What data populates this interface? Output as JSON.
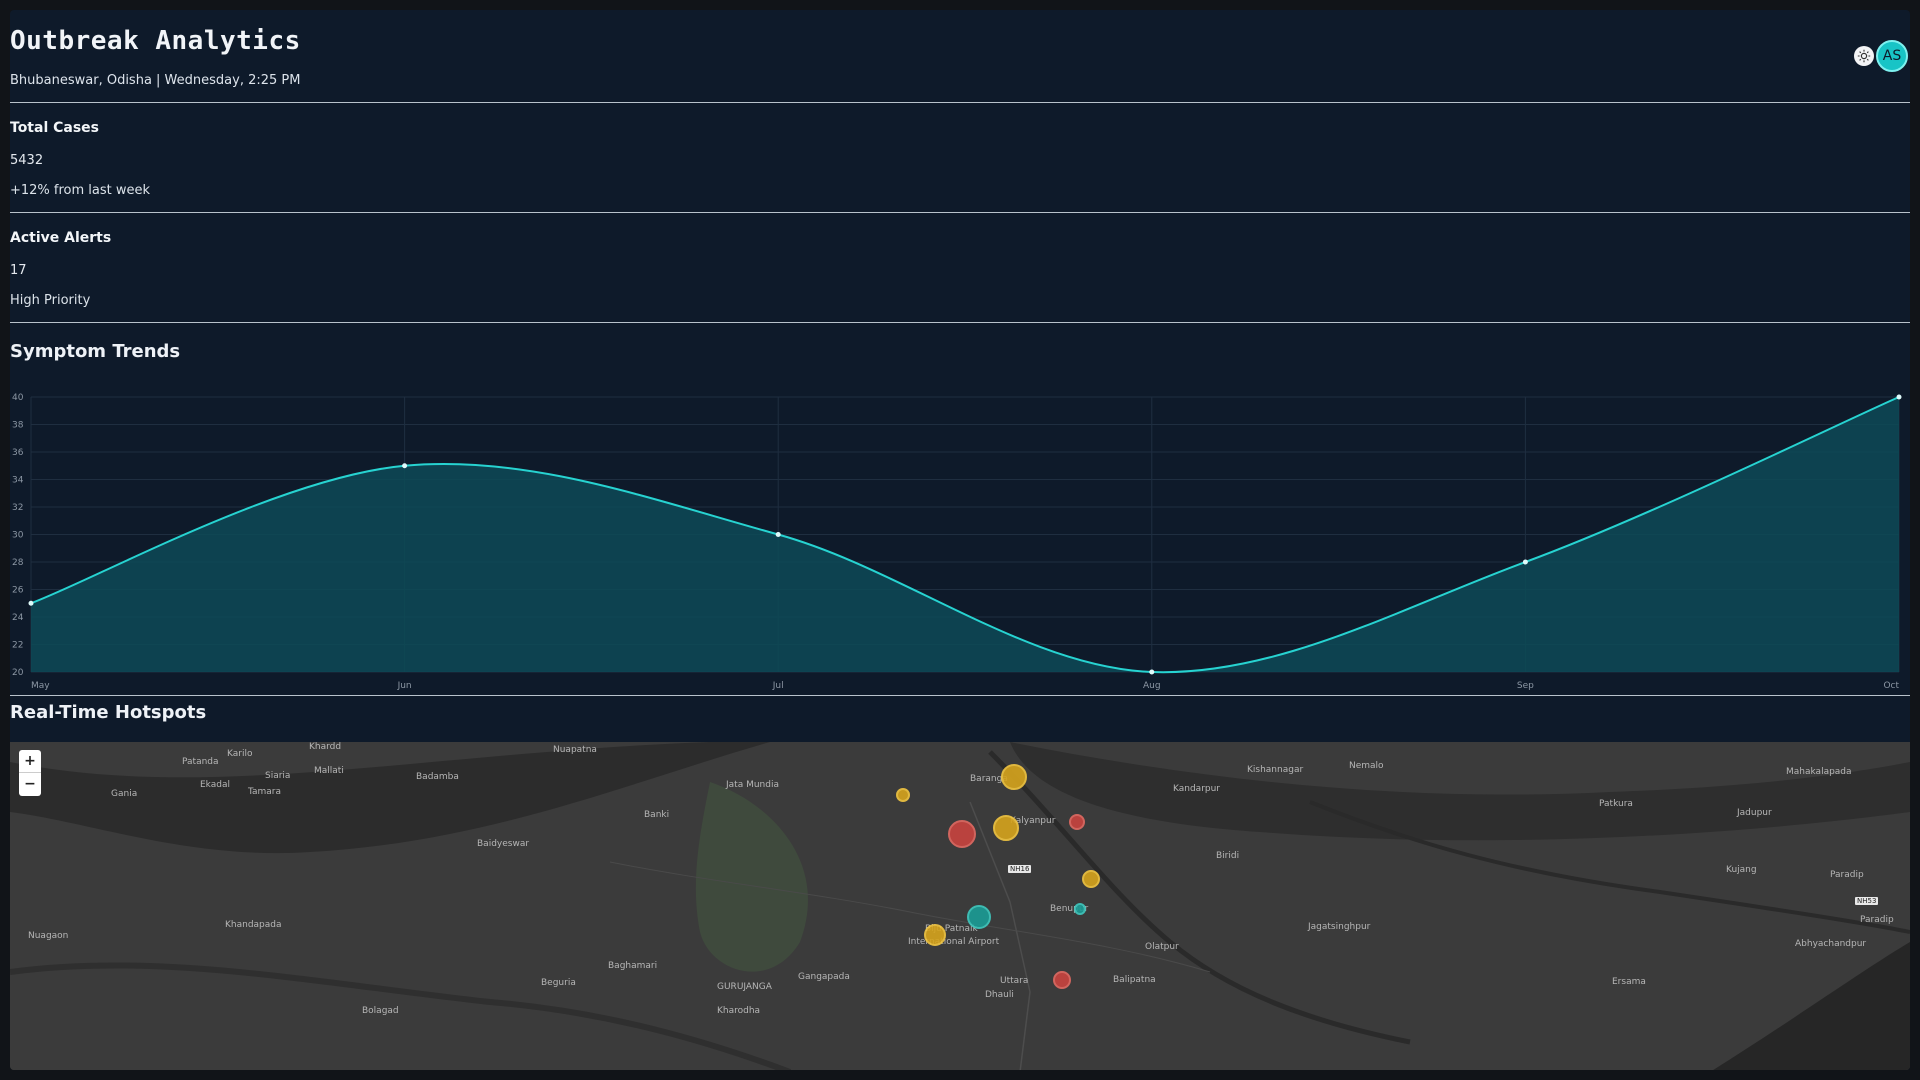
{
  "header": {
    "title": "Outbreak Analytics",
    "subtitle": "Bhubaneswar, Odisha | Wednesday, 2:25 PM",
    "avatar_initials": "AS"
  },
  "cards": [
    {
      "title": "Total Cases",
      "value": "5432",
      "sub": "+12% from last week"
    },
    {
      "title": "Active Alerts",
      "value": "17",
      "sub": "High Priority"
    }
  ],
  "symptom_section_title": "Symptom Trends",
  "hotspot_section_title": "Real-Time Hotspots",
  "chart_data": {
    "type": "area",
    "categories": [
      "May",
      "Jun",
      "Jul",
      "Aug",
      "Sep",
      "Oct"
    ],
    "series": [
      {
        "values": [
          25,
          35,
          30,
          20,
          28,
          40
        ]
      }
    ],
    "ylim": [
      20,
      40
    ],
    "yticks": [
      20,
      22,
      24,
      26,
      28,
      30,
      32,
      34,
      36,
      38,
      40
    ],
    "grid": true,
    "line_color": "#27d3d1",
    "fill_color": "#0d4a57"
  },
  "map": {
    "zoom_in": "+",
    "zoom_out": "−",
    "labels": [
      "Patanda",
      "Karilo",
      "Khardd",
      "Nuapatna",
      "Gania",
      "Ekadal",
      "Siaria",
      "Mallati",
      "Tamara",
      "Badamba",
      "Jata Mundia",
      "Baranga",
      "Kandarpur",
      "Kishannagar",
      "Nemalo",
      "Mahakalapada",
      "Banki",
      "Kalyanpur",
      "Patkura",
      "Jadupur",
      "Baidyeswar",
      "Biridi",
      "Kujang",
      "Paradip",
      "Benupur",
      "Biju Patnaik",
      "International Airport",
      "Nuagaon",
      "Khandapada",
      "Jagatsinghpur",
      "Olatpur",
      "Abhyachandpur",
      "Paradip",
      "Baghamari",
      "Beguria",
      "GURUJANGA",
      "Gangapada",
      "Uttara",
      "Balipatna",
      "Dhauli",
      "Ersama",
      "Kharodha",
      "Bolagad"
    ],
    "road_badges": [
      "NH16",
      "NH53"
    ],
    "hotspots": [
      {
        "level": "medium"
      },
      {
        "level": "medium"
      },
      {
        "level": "high"
      },
      {
        "level": "medium"
      },
      {
        "level": "high"
      },
      {
        "level": "medium"
      },
      {
        "level": "low"
      },
      {
        "level": "low"
      },
      {
        "level": "medium"
      },
      {
        "level": "high"
      }
    ]
  }
}
